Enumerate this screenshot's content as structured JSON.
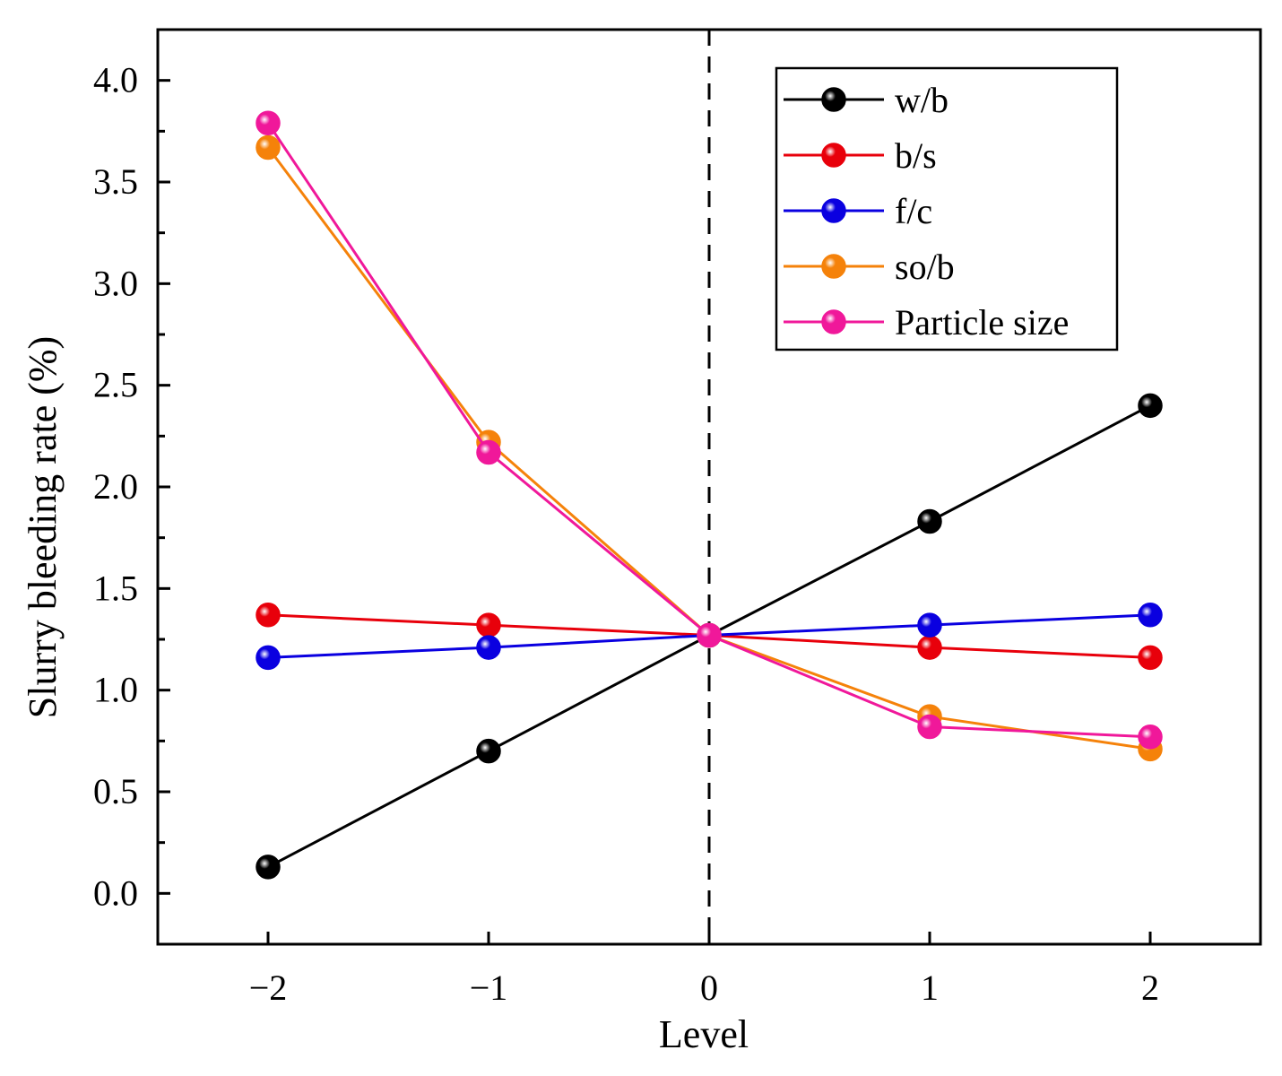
{
  "chart_data": {
    "type": "line",
    "title": "",
    "xlabel": "Level",
    "ylabel": "Slurry bleeding rate (%)",
    "x": [
      -2,
      -1,
      0,
      1,
      2
    ],
    "x_tick_labels": [
      "−2",
      "−1",
      "0",
      "1",
      "2"
    ],
    "xlim": [
      -2.5,
      2.5
    ],
    "ylim": [
      -0.25,
      4.25
    ],
    "y_ticks": [
      0.0,
      0.5,
      1.0,
      1.5,
      2.0,
      2.5,
      3.0,
      3.5,
      4.0
    ],
    "y_tick_labels": [
      "0.0",
      "0.5",
      "1.0",
      "1.5",
      "2.0",
      "2.5",
      "3.0",
      "3.5",
      "4.0"
    ],
    "grid": false,
    "reference_line": {
      "x": 0,
      "style": "dashed",
      "color": "#000000"
    },
    "legend_position": "top-right",
    "series": [
      {
        "name": "w/b",
        "color": "#000000",
        "values": [
          0.13,
          0.7,
          1.27,
          1.83,
          2.4
        ]
      },
      {
        "name": "b/s",
        "color": "#e8000b",
        "values": [
          1.37,
          1.32,
          1.27,
          1.21,
          1.16
        ]
      },
      {
        "name": "f/c",
        "color": "#0a00e0",
        "values": [
          1.16,
          1.21,
          1.27,
          1.32,
          1.37
        ]
      },
      {
        "name": "so/b",
        "color": "#f5820a",
        "values": [
          3.67,
          2.22,
          1.27,
          0.87,
          0.71
        ]
      },
      {
        "name": "Particle size",
        "color": "#f0189a",
        "values": [
          3.79,
          2.17,
          1.27,
          0.82,
          0.77
        ]
      }
    ]
  }
}
